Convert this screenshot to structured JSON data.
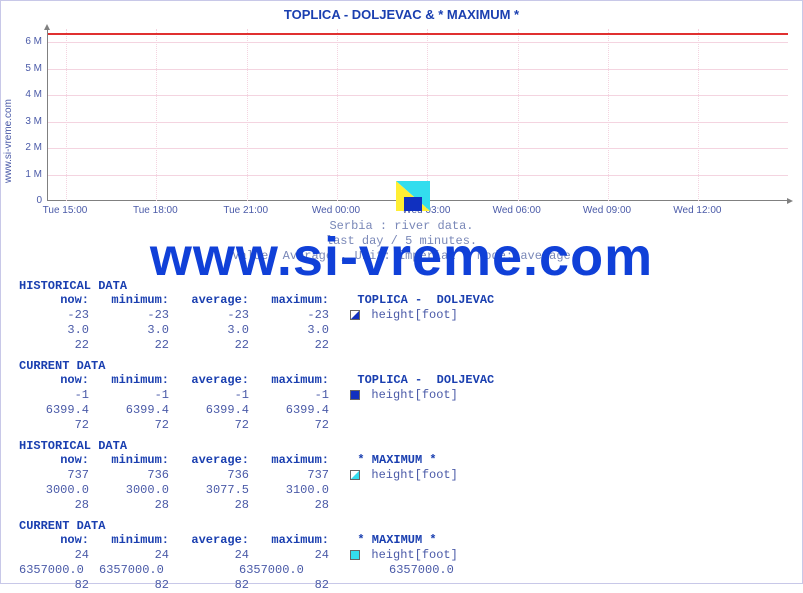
{
  "title": "TOPLICA -  DOLJEVAC & * MAXIMUM *",
  "ylabel": "www.si-vreme.com",
  "watermark": "www.si-vreme.com",
  "chart": {
    "type": "line",
    "background_color": "#ffffff",
    "grid_color": "#f4d4e0",
    "axis_color": "#808080",
    "tick_font_color": "#4a5aa8",
    "tick_fontsize": 10,
    "title_color": "#1a3fb0",
    "title_fontsize": 13,
    "ylim": [
      0,
      6500000
    ],
    "yticks": [
      {
        "v": 0,
        "label": "0"
      },
      {
        "v": 1000000,
        "label": "1 M"
      },
      {
        "v": 2000000,
        "label": "2 M"
      },
      {
        "v": 3000000,
        "label": "3 M"
      },
      {
        "v": 4000000,
        "label": "4 M"
      },
      {
        "v": 5000000,
        "label": "5 M"
      },
      {
        "v": 6000000,
        "label": "6 M"
      }
    ],
    "xticks": [
      "Tue 15:00",
      "Tue 18:00",
      "Tue 21:00",
      "Wed 00:00",
      "Wed 03:00",
      "Wed 06:00",
      "Wed 09:00",
      "Wed 12:00"
    ],
    "series": [
      {
        "name": "maximum",
        "color": "#e03030",
        "value": 6357000,
        "line_width": 2
      }
    ],
    "legend_swatch": {
      "yellow": "#ffee33",
      "cyan": "#33ddee",
      "blue": "#1030c0"
    }
  },
  "subtext": {
    "line1": "Serbia : river data.",
    "line2": "last day / 5 minutes.",
    "line3": "Value: Average , Unit: imperial , Mode: average"
  },
  "sections": [
    {
      "title": "HISTORICAL DATA",
      "headers": {
        "now": "now:",
        "min": "minimum:",
        "avg": "average:",
        "max": "maximum:"
      },
      "series_label": "TOPLICA -  DOLJEVAC",
      "marker_color": "#1030c0",
      "marker_style": "split",
      "unit_label": "height[foot]",
      "rows": [
        [
          "-23",
          "-23",
          "-23",
          "-23"
        ],
        [
          "3.0",
          "3.0",
          "3.0",
          "3.0"
        ],
        [
          "22",
          "22",
          "22",
          "22"
        ]
      ]
    },
    {
      "title": "CURRENT DATA",
      "headers": {
        "now": "now:",
        "min": "minimum:",
        "avg": "average:",
        "max": "maximum:"
      },
      "series_label": "TOPLICA -  DOLJEVAC",
      "marker_color": "#1030c0",
      "marker_style": "solid",
      "unit_label": "height[foot]",
      "rows": [
        [
          "-1",
          "-1",
          "-1",
          "-1"
        ],
        [
          "6399.4",
          "6399.4",
          "6399.4",
          "6399.4"
        ],
        [
          "72",
          "72",
          "72",
          "72"
        ]
      ]
    },
    {
      "title": "HISTORICAL DATA",
      "headers": {
        "now": "now:",
        "min": "minimum:",
        "avg": "average:",
        "max": "maximum:"
      },
      "series_label": "* MAXIMUM *",
      "marker_color": "#33ddee",
      "marker_style": "split",
      "unit_label": "height[foot]",
      "rows": [
        [
          "737",
          "736",
          "736",
          "737"
        ],
        [
          "3000.0",
          "3000.0",
          "3077.5",
          "3100.0"
        ],
        [
          "28",
          "28",
          "28",
          "28"
        ]
      ]
    },
    {
      "title": "CURRENT DATA",
      "headers": {
        "now": "now:",
        "min": "minimum:",
        "avg": "average:",
        "max": "maximum:"
      },
      "series_label": "* MAXIMUM *",
      "marker_color": "#33ddee",
      "marker_style": "solid",
      "unit_label": "height[foot]",
      "rows": [
        [
          "24",
          "24",
          "24",
          "24"
        ],
        [
          "6357000.0",
          "6357000.0",
          "6357000.0",
          "6357000.0"
        ],
        [
          "82",
          "82",
          "82",
          "82"
        ]
      ],
      "wide_row_index": 1
    }
  ]
}
